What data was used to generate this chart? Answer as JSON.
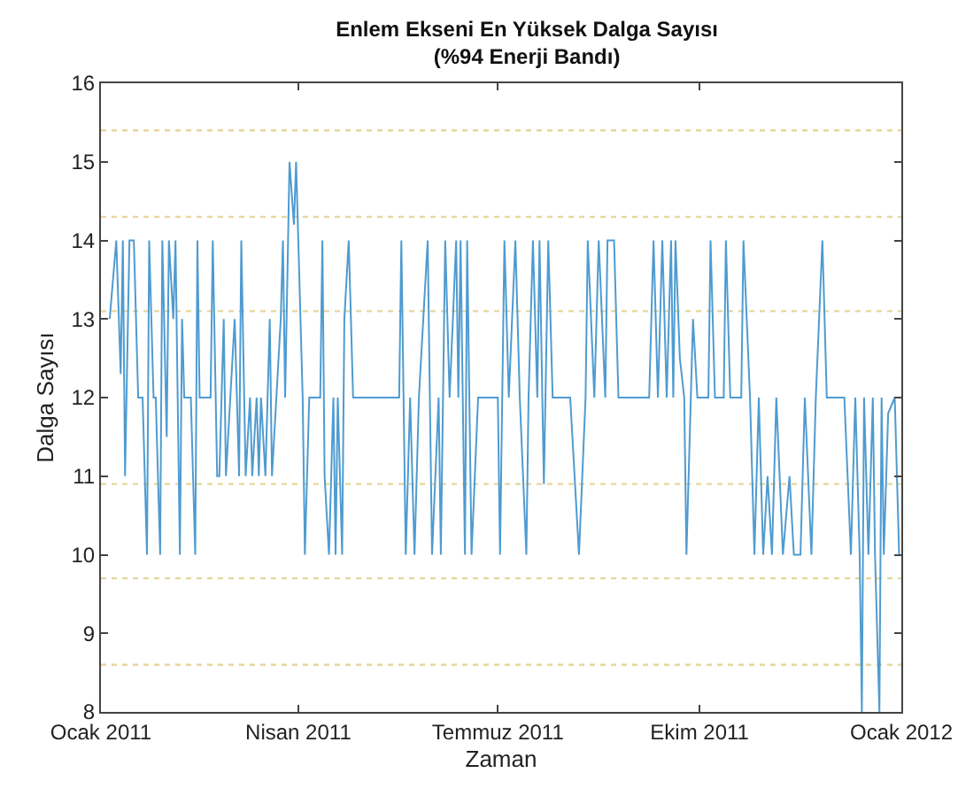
{
  "chart_data": {
    "type": "line",
    "title": "Enlem Ekseni En Yüksek Dalga Sayısı\n(%94 Enerji Bandı)",
    "xlabel": "Zaman",
    "ylabel": "Dalga Sayısı",
    "xlim": [
      "2011-01-01",
      "2012-01-01"
    ],
    "xticks": [
      {
        "value": "2011-01-01",
        "label": "Ocak 2011"
      },
      {
        "value": "2011-04-01",
        "label": "Nisan 2011"
      },
      {
        "value": "2011-07-01",
        "label": "Temmuz 2011"
      },
      {
        "value": "2011-10-01",
        "label": "Ekim 2011"
      },
      {
        "value": "2012-01-01",
        "label": "Ocak 2012"
      }
    ],
    "ylim": [
      8,
      16
    ],
    "yticks": [
      8,
      9,
      10,
      11,
      12,
      13,
      14,
      15,
      16
    ],
    "grid": false,
    "marker": "none",
    "line_style": "solid",
    "ref_lines": [
      {
        "axis": "y",
        "value": 15.4,
        "color": "#e6d79a",
        "line_style": "dotted"
      },
      {
        "axis": "y",
        "value": 14.3,
        "color": "#e6d79a",
        "line_style": "dotted"
      },
      {
        "axis": "y",
        "value": 13.1,
        "color": "#e6d79a",
        "line_style": "dotted"
      },
      {
        "axis": "y",
        "value": 10.9,
        "color": "#e6d79a",
        "line_style": "dotted"
      },
      {
        "axis": "y",
        "value": 9.7,
        "color": "#e6d79a",
        "line_style": "dotted"
      },
      {
        "axis": "y",
        "value": 8.6,
        "color": "#e6d79a",
        "line_style": "dotted"
      }
    ],
    "series": [
      {
        "color": "#4f9bd0",
        "x": [
          "2011-01-05",
          "2011-01-08",
          "2011-01-10",
          "2011-01-11",
          "2011-01-12",
          "2011-01-14",
          "2011-01-16",
          "2011-01-18",
          "2011-01-20",
          "2011-01-22",
          "2011-01-23",
          "2011-01-25",
          "2011-01-26",
          "2011-01-28",
          "2011-01-29",
          "2011-01-31",
          "2011-02-01",
          "2011-02-03",
          "2011-02-04",
          "2011-02-06",
          "2011-02-07",
          "2011-02-08",
          "2011-02-11",
          "2011-02-13",
          "2011-02-14",
          "2011-02-15",
          "2011-02-20",
          "2011-02-21",
          "2011-02-23",
          "2011-02-24",
          "2011-02-26",
          "2011-02-27",
          "2011-03-01",
          "2011-03-03",
          "2011-03-05",
          "2011-03-06",
          "2011-03-08",
          "2011-03-10",
          "2011-03-11",
          "2011-03-13",
          "2011-03-14",
          "2011-03-15",
          "2011-03-17",
          "2011-03-19",
          "2011-03-20",
          "2011-03-22",
          "2011-03-24",
          "2011-03-25",
          "2011-03-26",
          "2011-03-28",
          "2011-03-30",
          "2011-03-31",
          "2011-04-02",
          "2011-04-03",
          "2011-04-04",
          "2011-04-06",
          "2011-04-11",
          "2011-04-12",
          "2011-04-13",
          "2011-04-15",
          "2011-04-17",
          "2011-04-18",
          "2011-04-19",
          "2011-04-21",
          "2011-04-22",
          "2011-04-24",
          "2011-04-26",
          "2011-05-17",
          "2011-05-18",
          "2011-05-20",
          "2011-05-22",
          "2011-05-24",
          "2011-05-26",
          "2011-05-30",
          "2011-06-01",
          "2011-06-04",
          "2011-06-05",
          "2011-06-07",
          "2011-06-09",
          "2011-06-12",
          "2011-06-13",
          "2011-06-14",
          "2011-06-16",
          "2011-06-17",
          "2011-06-19",
          "2011-06-22",
          "2011-07-01",
          "2011-07-02",
          "2011-07-04",
          "2011-07-06",
          "2011-07-09",
          "2011-07-11",
          "2011-07-14",
          "2011-07-15",
          "2011-07-17",
          "2011-07-19",
          "2011-07-20",
          "2011-07-22",
          "2011-07-24",
          "2011-07-26",
          "2011-08-03",
          "2011-08-05",
          "2011-08-07",
          "2011-08-10",
          "2011-08-11",
          "2011-08-14",
          "2011-08-16",
          "2011-08-19",
          "2011-08-20",
          "2011-08-23",
          "2011-08-25",
          "2011-09-08",
          "2011-09-10",
          "2011-09-12",
          "2011-09-14",
          "2011-09-16",
          "2011-09-18",
          "2011-09-19",
          "2011-09-20",
          "2011-09-22",
          "2011-09-24",
          "2011-09-25",
          "2011-09-27",
          "2011-09-28",
          "2011-09-30",
          "2011-10-05",
          "2011-10-06",
          "2011-10-08",
          "2011-10-12",
          "2011-10-13",
          "2011-10-15",
          "2011-10-20",
          "2011-10-21",
          "2011-10-24",
          "2011-10-26",
          "2011-10-28",
          "2011-10-30",
          "2011-11-01",
          "2011-11-03",
          "2011-11-05",
          "2011-11-08",
          "2011-11-11",
          "2011-11-13",
          "2011-11-16",
          "2011-11-18",
          "2011-11-21",
          "2011-11-23",
          "2011-11-26",
          "2011-11-28",
          "2011-12-06",
          "2011-12-09",
          "2011-12-11",
          "2011-12-13",
          "2011-12-14",
          "2011-12-15",
          "2011-12-17",
          "2011-12-19",
          "2011-12-20",
          "2011-12-22",
          "2011-12-23",
          "2011-12-24",
          "2011-12-26",
          "2011-12-29",
          "2011-12-31"
        ],
        "values": [
          13,
          14,
          12.3,
          14,
          11,
          14,
          14,
          12,
          12,
          10,
          14,
          12,
          12,
          10,
          14,
          11.5,
          14,
          13,
          14,
          10,
          13,
          12,
          12,
          10,
          14,
          12,
          12,
          14,
          11,
          11,
          13,
          11,
          12,
          13,
          11,
          14,
          11,
          12,
          11,
          12,
          11,
          12,
          11,
          13,
          11,
          12,
          13,
          14,
          12,
          15,
          14.2,
          15,
          13,
          12,
          10,
          12,
          12,
          14,
          11,
          10,
          12,
          10,
          12,
          10,
          13,
          14,
          12,
          12,
          14,
          10,
          12,
          10,
          12,
          14,
          10,
          12,
          10,
          14,
          12,
          14,
          12,
          14,
          10,
          14,
          10,
          12,
          12,
          10,
          14,
          12,
          14,
          12,
          10,
          12,
          14,
          12,
          14,
          10.9,
          14,
          12,
          12,
          11,
          10,
          12,
          14,
          12,
          14,
          12,
          14,
          14,
          12,
          12,
          14,
          12,
          14,
          12,
          14,
          12,
          14,
          12.5,
          12,
          10,
          12,
          13,
          12,
          12,
          14,
          12,
          12,
          14,
          12,
          12,
          14,
          12,
          10,
          12,
          10,
          11,
          10,
          12,
          10,
          11,
          10,
          10,
          12,
          10,
          12,
          14,
          12,
          12,
          10,
          12,
          10,
          8,
          12,
          10,
          12,
          10,
          8,
          12,
          10,
          11.8,
          12,
          10
        ]
      }
    ]
  }
}
